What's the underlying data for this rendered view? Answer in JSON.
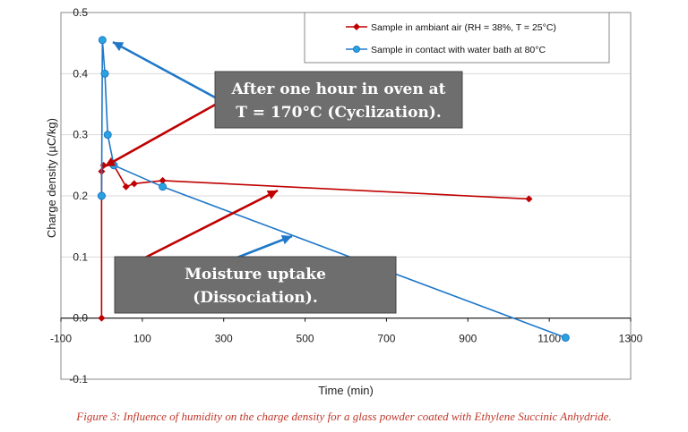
{
  "chart_data": {
    "type": "line",
    "title": "",
    "xlabel": "Time (min)",
    "ylabel": "Charge density (µC/kg)",
    "xlim": [
      -100,
      1300
    ],
    "ylim": [
      -0.1,
      0.5
    ],
    "x_ticks": [
      -100,
      100,
      300,
      500,
      700,
      900,
      1100,
      1300
    ],
    "y_ticks": [
      -0.1,
      0.0,
      0.1,
      0.2,
      0.3,
      0.4,
      0.5
    ],
    "x_tick_labels": [
      "-100",
      "100",
      "300",
      "500",
      "700",
      "900",
      "1100",
      "1300"
    ],
    "y_tick_labels": [
      "-0.1",
      "0.0",
      "0.1",
      "0.2",
      "0.3",
      "0.4",
      "0.5"
    ],
    "grid": "horizontal",
    "legend_position": "top-right",
    "series": [
      {
        "name": "Sample in ambiant air (RH = 38%, T = 25°C)",
        "color": "#c00000",
        "marker": "diamond",
        "x": [
          0,
          0,
          5,
          30,
          60,
          80,
          150,
          1050
        ],
        "y": [
          0.0,
          0.24,
          0.25,
          0.25,
          0.215,
          0.22,
          0.225,
          0.195
        ]
      },
      {
        "name": "Sample in contact with water bath at 80°C",
        "color": "#1f78c8",
        "marker": "circle",
        "x": [
          0,
          0,
          2,
          8,
          15,
          30,
          150,
          1140
        ],
        "y": [
          0.2,
          0.2,
          0.455,
          0.4,
          0.3,
          0.25,
          0.215,
          -0.032
        ]
      }
    ],
    "annotations": [
      {
        "text_lines": [
          "After one hour in oven at",
          "T = 170°C (Cyclization)."
        ]
      },
      {
        "text_lines": [
          "Moisture uptake",
          "(Dissociation)."
        ]
      }
    ]
  },
  "caption": "Figure 3: Influence of humidity on the charge density for a glass powder coated with Ethylene Succinic Anhydride."
}
